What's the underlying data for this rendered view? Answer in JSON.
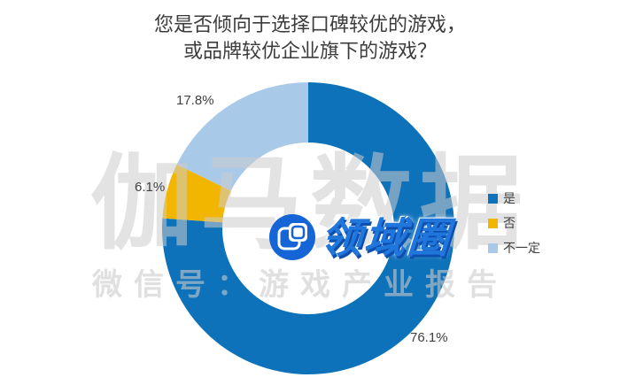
{
  "title": {
    "line1": "您是否倾向于选择口碑较优的游戏，",
    "line2": "或品牌较优企业旗下的游戏？"
  },
  "chart_data": {
    "type": "pie",
    "subtype": "donut",
    "title": "您是否倾向于选择口碑较优的游戏，或品牌较优企业旗下的游戏？",
    "start_angle_deg": 0,
    "direction": "clockwise",
    "hole_ratio": 0.59,
    "legend_position": "right",
    "slices": [
      {
        "label": "是",
        "value": 76.1,
        "pct_label": "76.1%",
        "color": "#0E72BA"
      },
      {
        "label": "否",
        "value": 6.1,
        "pct_label": "6.1%",
        "color": "#F2B600"
      },
      {
        "label": "不一定",
        "value": 17.8,
        "pct_label": "17.8%",
        "color": "#A9C9E9"
      }
    ]
  },
  "watermark": {
    "brand_text": "伽马数据",
    "wechat_text": "微信号：游戏产业报告",
    "logo_text": "领域圈"
  },
  "icons": {
    "logo_icon": "blue circle containing two overlapping rounded squares"
  },
  "colors": {
    "series_yes": "#0E72BA",
    "series_no": "#F2B600",
    "series_notsure": "#A9C9E9",
    "logo_blue": "#1565D6",
    "title_text": "#3C3C3C",
    "label_text": "#404040",
    "watermark_gray": "#CCCCCC"
  }
}
